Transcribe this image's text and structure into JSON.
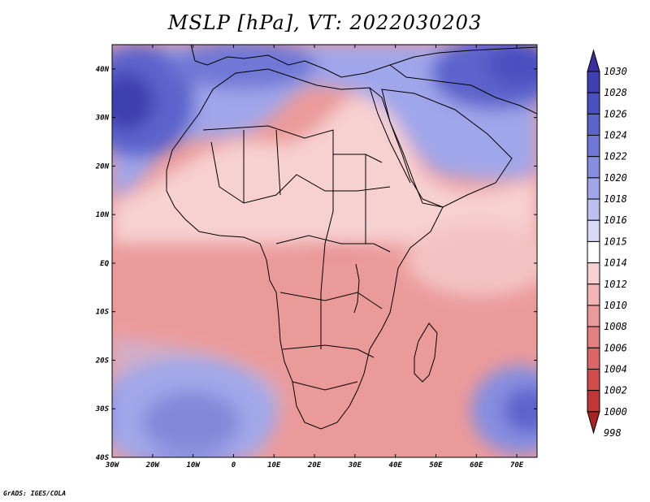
{
  "title": "MSLP [hPa], VT: 2022030203",
  "footer": "GrADS: IGES/COLA",
  "map": {
    "lon_range": [
      -30,
      75
    ],
    "lat_range": [
      -40,
      45
    ],
    "lat_ticks": [
      {
        "value": 40,
        "label": "40N"
      },
      {
        "value": 30,
        "label": "30N"
      },
      {
        "value": 20,
        "label": "20N"
      },
      {
        "value": 10,
        "label": "10N"
      },
      {
        "value": 0,
        "label": "EQ"
      },
      {
        "value": -10,
        "label": "10S"
      },
      {
        "value": -20,
        "label": "20S"
      },
      {
        "value": -30,
        "label": "30S"
      },
      {
        "value": -40,
        "label": "40S"
      }
    ],
    "lon_ticks": [
      {
        "value": -30,
        "label": "30W"
      },
      {
        "value": -20,
        "label": "20W"
      },
      {
        "value": -10,
        "label": "10W"
      },
      {
        "value": 0,
        "label": "0"
      },
      {
        "value": 10,
        "label": "10E"
      },
      {
        "value": 20,
        "label": "20E"
      },
      {
        "value": 30,
        "label": "30E"
      },
      {
        "value": 40,
        "label": "40E"
      },
      {
        "value": 50,
        "label": "50E"
      },
      {
        "value": 60,
        "label": "60E"
      },
      {
        "value": 70,
        "label": "70E"
      }
    ]
  },
  "colorbar": {
    "levels": [
      {
        "label": "1030",
        "color": "#3a2f9f"
      },
      {
        "label": "1028",
        "color": "#3e3fb0"
      },
      {
        "label": "1026",
        "color": "#4a50c0"
      },
      {
        "label": "1024",
        "color": "#5c64cc"
      },
      {
        "label": "1022",
        "color": "#6f78d6"
      },
      {
        "label": "1020",
        "color": "#868ee0"
      },
      {
        "label": "1018",
        "color": "#a0a6ea"
      },
      {
        "label": "1016",
        "color": "#bcc0f2"
      },
      {
        "label": "1015",
        "color": "#d8daf8"
      },
      {
        "label": "1014",
        "color": "#ffffff"
      },
      {
        "label": "1012",
        "color": "#f7d0d0"
      },
      {
        "label": "1010",
        "color": "#f2b4b4"
      },
      {
        "label": "1008",
        "color": "#eb9a9a"
      },
      {
        "label": "1006",
        "color": "#e47f7f"
      },
      {
        "label": "1004",
        "color": "#dc6666"
      },
      {
        "label": "1002",
        "color": "#d24c4c"
      },
      {
        "label": "1000",
        "color": "#c23636"
      },
      {
        "label": "998",
        "color": "#a82424"
      }
    ]
  }
}
